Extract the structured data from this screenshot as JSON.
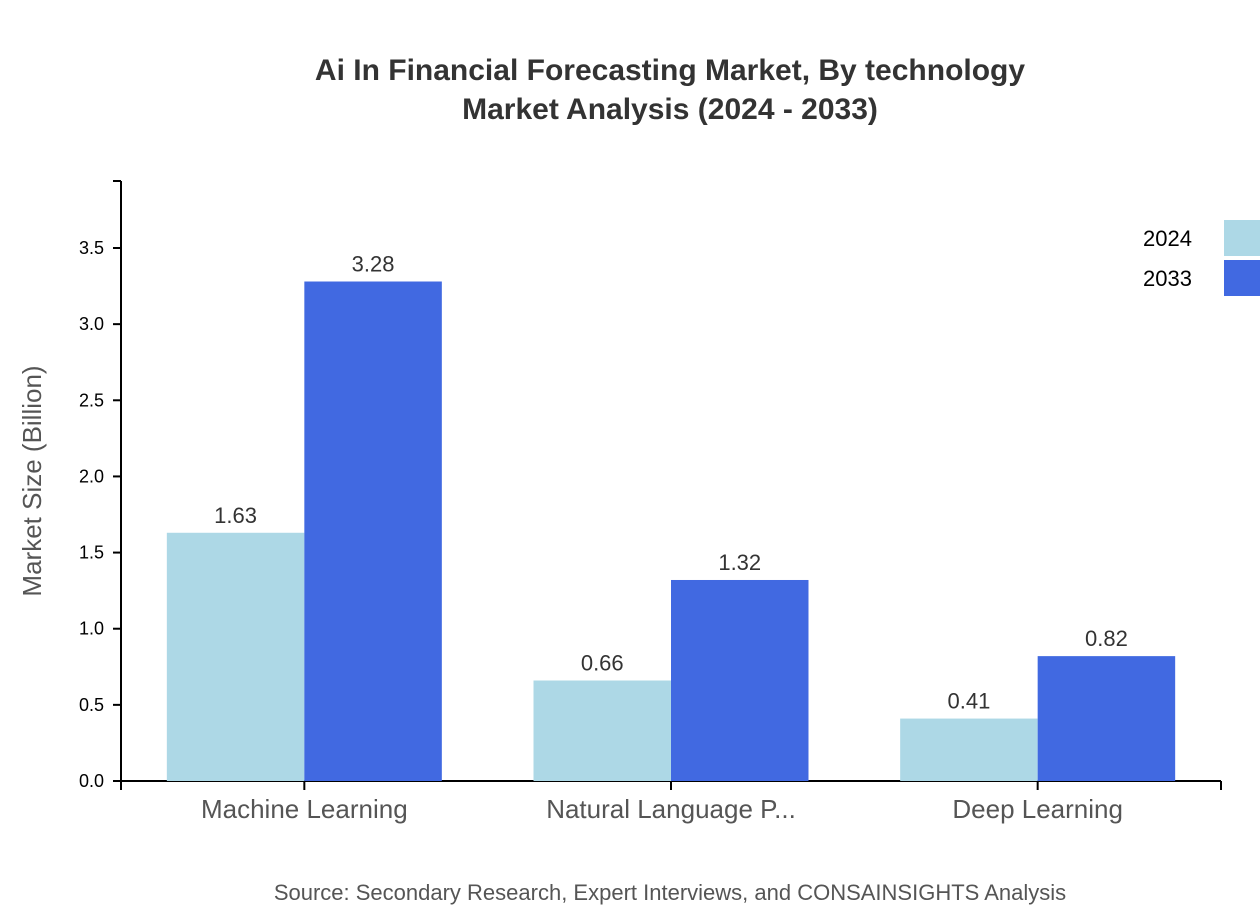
{
  "chart_data": {
    "type": "bar",
    "title": "Ai In Financial Forecasting Market, By technology",
    "subtitle": "Market Analysis (2024 - 2033)",
    "xlabel": "",
    "ylabel": "Market Size (Billion)",
    "categories": [
      "Machine Learning",
      "Natural Language P...",
      "Deep Learning"
    ],
    "series": [
      {
        "name": "2024",
        "values": [
          1.63,
          0.66,
          0.41
        ],
        "color": "#add8e6"
      },
      {
        "name": "2033",
        "values": [
          3.28,
          1.32,
          0.82
        ],
        "color": "#4169e1"
      }
    ],
    "ylim": [
      0,
      3.94
    ],
    "yticks": [
      "0.0",
      "0.5",
      "1.0",
      "1.5",
      "2.0",
      "2.5",
      "3.0",
      "3.5"
    ],
    "grid": false,
    "legend": "top-right",
    "source": "Source: Secondary Research, Expert Interviews, and CONSAINSIGHTS Analysis"
  }
}
